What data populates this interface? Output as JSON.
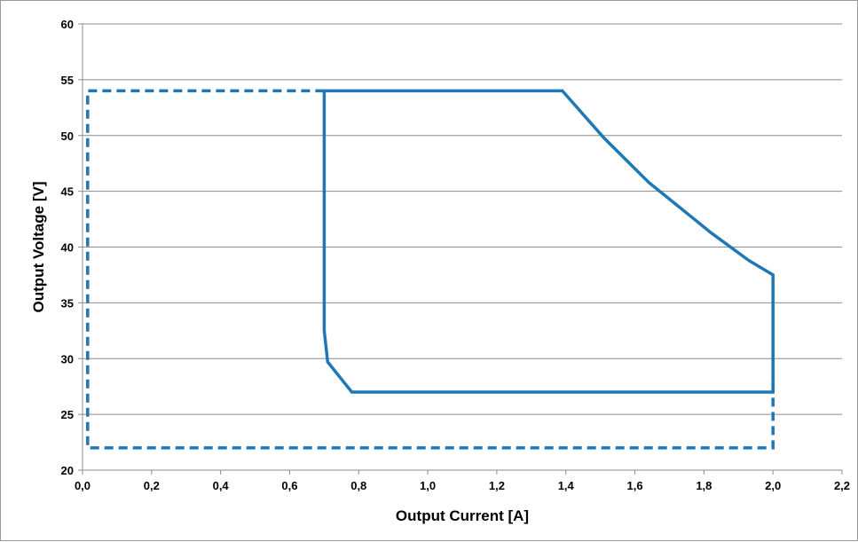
{
  "chart_data": {
    "type": "line",
    "title": "",
    "xlabel": "Output Current [A]",
    "ylabel": "Output Voltage [V]",
    "xlim": [
      0,
      2.2
    ],
    "ylim": [
      20,
      60
    ],
    "x_ticks": [
      0,
      0.2,
      0.4,
      0.6,
      0.8,
      1.0,
      1.2,
      1.4,
      1.6,
      1.8,
      2.0,
      2.2
    ],
    "x_tick_labels": [
      "0,0",
      "0,2",
      "0,4",
      "0,6",
      "0,8",
      "1,0",
      "1,2",
      "1,4",
      "1,6",
      "1,8",
      "2,0",
      "2,2"
    ],
    "y_ticks": [
      20,
      25,
      30,
      35,
      40,
      45,
      50,
      55,
      60
    ],
    "y_tick_labels": [
      "20",
      "25",
      "30",
      "35",
      "40",
      "45",
      "50",
      "55",
      "60"
    ],
    "grid": "horizontal",
    "legend": "none",
    "series": [
      {
        "style": "solid",
        "color": "#1f77b4",
        "points": [
          [
            0.7,
            54.0
          ],
          [
            1.39,
            54.0
          ],
          [
            1.51,
            49.8
          ],
          [
            1.64,
            45.8
          ],
          [
            1.76,
            42.8
          ],
          [
            1.82,
            41.3
          ],
          [
            1.93,
            38.8
          ],
          [
            2.0,
            37.5
          ],
          [
            2.0,
            27.0
          ],
          [
            0.78,
            27.0
          ],
          [
            0.71,
            29.7
          ],
          [
            0.7,
            32.5
          ],
          [
            0.7,
            54.0
          ]
        ]
      },
      {
        "style": "dashed",
        "color": "#1f77b4",
        "points": [
          [
            0.7,
            54.0
          ],
          [
            0.015,
            54.0
          ],
          [
            0.015,
            22.0
          ],
          [
            2.0,
            22.0
          ],
          [
            2.0,
            28.5
          ]
        ]
      }
    ]
  }
}
